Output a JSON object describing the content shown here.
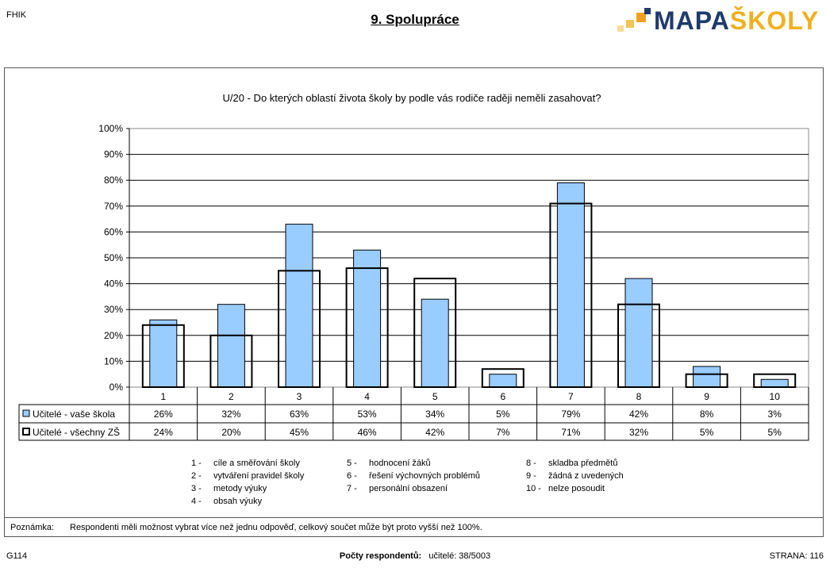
{
  "header": {
    "left": "FHIK",
    "title": "9. Spolupráce",
    "logo_part1": "MAPA",
    "logo_part2": "ŠKOLY"
  },
  "chart_data": {
    "type": "bar",
    "title": "U/20 - Do kterých oblastí života školy by podle vás rodiče raději neměli zasahovat?",
    "categories": [
      "1",
      "2",
      "3",
      "4",
      "5",
      "6",
      "7",
      "8",
      "9",
      "10"
    ],
    "y_ticks": [
      "0%",
      "10%",
      "20%",
      "30%",
      "40%",
      "50%",
      "60%",
      "70%",
      "80%",
      "90%",
      "100%"
    ],
    "ylim": [
      0,
      100
    ],
    "series": [
      {
        "name": "Učitelé - vaše škola",
        "style": "filled",
        "color": "#99ccff",
        "values": [
          26,
          32,
          63,
          53,
          34,
          5,
          79,
          42,
          8,
          3
        ],
        "labels": [
          "26%",
          "32%",
          "63%",
          "53%",
          "34%",
          "5%",
          "79%",
          "42%",
          "8%",
          "3%"
        ]
      },
      {
        "name": "Učitelé - všechny ZŠ",
        "style": "outline",
        "color": "#000000",
        "values": [
          24,
          20,
          45,
          46,
          42,
          7,
          71,
          32,
          5,
          5
        ],
        "labels": [
          "24%",
          "20%",
          "45%",
          "46%",
          "42%",
          "7%",
          "71%",
          "32%",
          "5%",
          "5%"
        ]
      }
    ],
    "grid": true
  },
  "category_legend": [
    {
      "num": "1",
      "text": "cíle a směřování školy"
    },
    {
      "num": "2",
      "text": "vytváření pravidel školy"
    },
    {
      "num": "3",
      "text": "metody výuky"
    },
    {
      "num": "4",
      "text": "obsah výuky"
    },
    {
      "num": "5",
      "text": "hodnocení žáků"
    },
    {
      "num": "6",
      "text": "řešení výchovných problémů"
    },
    {
      "num": "7",
      "text": "personální obsazení"
    },
    {
      "num": "8",
      "text": "skladba předmětů"
    },
    {
      "num": "9",
      "text": "žádná z uvedených"
    },
    {
      "num": "10",
      "text": "nelze posoudit"
    }
  ],
  "note": {
    "label": "Poznámka:",
    "text": "Respondenti měli možnost vybrat více než jednu odpověď, celkový součet může být proto vyšší než 100%."
  },
  "footer": {
    "left": "G114",
    "center_label": "Počty respondentů:",
    "center_value": "učitelé: 38/5003",
    "right": "STRANA: 116"
  }
}
